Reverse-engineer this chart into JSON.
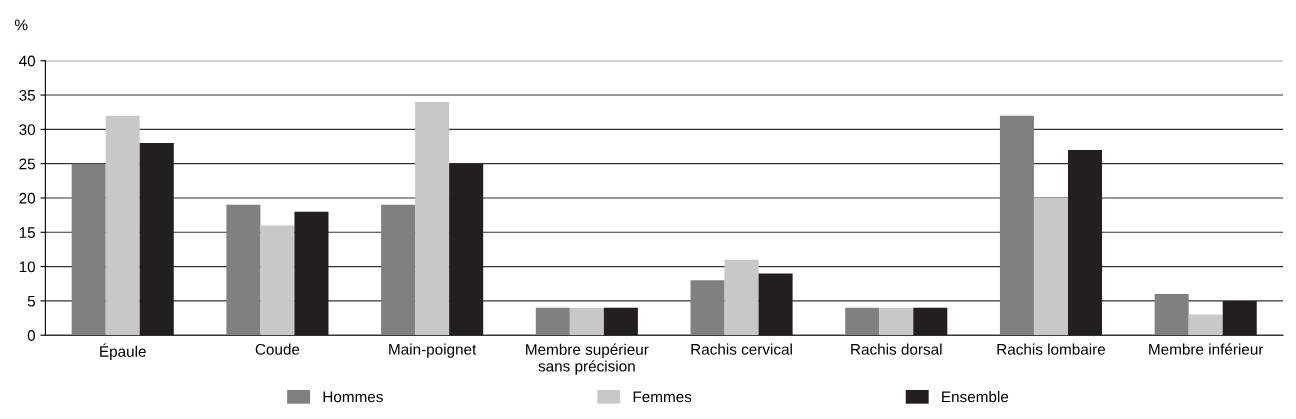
{
  "chart_data": {
    "type": "bar",
    "ylabel": "%",
    "categories": [
      "Épaule",
      "Coude",
      "Main-poignet",
      "Membre supérieur\nsans précision",
      "Rachis cervical",
      "Rachis dorsal",
      "Rachis lombaire",
      "Membre inférieur"
    ],
    "series": [
      {
        "name": "Hommes",
        "color": "#808083",
        "values": [
          25,
          19,
          19,
          4,
          8,
          4,
          32,
          6
        ]
      },
      {
        "name": "Femmes",
        "color": "#c8c8c8",
        "values": [
          32,
          16,
          34,
          4,
          11,
          4,
          20,
          3
        ]
      },
      {
        "name": "Ensemble",
        "color": "#231f20",
        "values": [
          28,
          18,
          25,
          4,
          9,
          4,
          27,
          5
        ]
      }
    ],
    "ylim": [
      0,
      40
    ],
    "yticks": [
      0,
      5,
      10,
      15,
      20,
      25,
      30,
      35,
      40
    ],
    "grid": "y",
    "legend": "bottom"
  }
}
